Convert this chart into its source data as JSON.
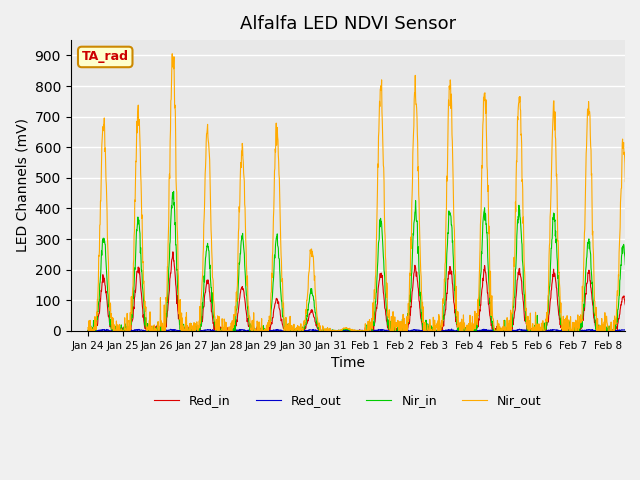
{
  "title": "Alfalfa LED NDVI Sensor",
  "xlabel": "Time",
  "ylabel": "LED Channels (mV)",
  "ylim": [
    0,
    950
  ],
  "fig_bg_color": "#f0f0f0",
  "plot_bg_color": "#e8e8e8",
  "annotation_text": "TA_rad",
  "annotation_bg": "#ffffcc",
  "annotation_border": "#cc8800",
  "colors": {
    "Red_in": "#dd0000",
    "Red_out": "#0000cc",
    "Nir_in": "#00cc00",
    "Nir_out": "#ffaa00"
  },
  "xtick_labels": [
    "Jan 24",
    "Jan 25",
    "Jan 26",
    "Jan 27",
    "Jan 28",
    "Jan 29",
    "Jan 30",
    "Jan 31",
    "Feb 1",
    "Feb 2",
    "Feb 3",
    "Feb 4",
    "Feb 5",
    "Feb 6",
    "Feb 7",
    "Feb 8"
  ],
  "nir_out_peaks": [
    690,
    720,
    900,
    670,
    600,
    660,
    270,
    10,
    790,
    790,
    800,
    780,
    780,
    730,
    740,
    610
  ],
  "nir_in_peaks": [
    300,
    360,
    450,
    280,
    310,
    305,
    130,
    5,
    360,
    395,
    395,
    395,
    395,
    380,
    295,
    280
  ],
  "red_in_peaks": [
    170,
    200,
    245,
    160,
    145,
    105,
    65,
    2,
    185,
    205,
    205,
    200,
    200,
    190,
    190,
    110
  ],
  "red_out_peaks": [
    3,
    3,
    3,
    3,
    3,
    3,
    3,
    0,
    3,
    3,
    3,
    3,
    3,
    3,
    3,
    3
  ],
  "num_points": 1600,
  "days": 16
}
